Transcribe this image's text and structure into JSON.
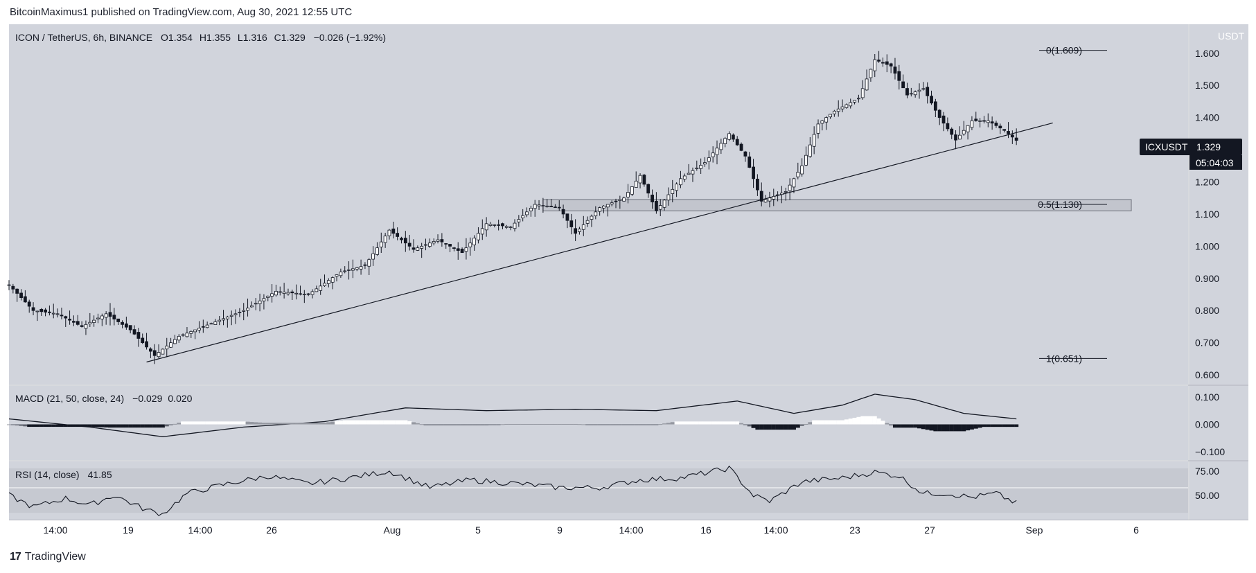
{
  "header": {
    "published": "BitcoinMaximus1 published on TradingView.com, Aug 30, 2021 12:55 UTC"
  },
  "footer": {
    "brand": "TradingView",
    "logo": "17"
  },
  "legend": {
    "symbol": "ICON / TetherUS, 6h, BINANCE",
    "o_label": "O",
    "o": "1.354",
    "h_label": "H",
    "h": "1.355",
    "l_label": "L",
    "l": "1.316",
    "c_label": "C",
    "c": "1.329",
    "change": "−0.026 (−1.92%)"
  },
  "price_badge": {
    "ticker": "ICXUSDT",
    "price": "1.329",
    "countdown": "05:04:03"
  },
  "macd": {
    "label": "MACD (21, 50, close, 24)",
    "v1": "−0.029",
    "v2": "0.020",
    "ticks": [
      "0.100",
      "0.000",
      "−0.100"
    ]
  },
  "rsi": {
    "label": "RSI (14, close)",
    "value": "41.85",
    "ticks": [
      "75.00",
      "50.00"
    ]
  },
  "chart_data": {
    "type": "candlestick",
    "title": "ICON / TetherUS, 6h, BINANCE",
    "currency": "USDT",
    "ylim": [
      0.57,
      1.69
    ],
    "y_ticks": [
      0.6,
      0.7,
      0.8,
      0.9,
      1.0,
      1.1,
      1.2,
      1.3,
      1.4,
      1.5,
      1.6
    ],
    "x_ticks": [
      "14:00",
      "19",
      "14:00",
      "26",
      "Aug",
      "5",
      "9",
      "14:00",
      "16",
      "14:00",
      "23",
      "27",
      "Sep",
      "6"
    ],
    "x_tick_labels_unit": "6h bars",
    "fib_levels": [
      {
        "label": "0(1.609)",
        "value": 1.609
      },
      {
        "label": "0.5(1.130)",
        "value": 1.13
      },
      {
        "label": "1(0.651)",
        "value": 0.651
      }
    ],
    "support_zone": [
      1.11,
      1.145
    ],
    "trendline": {
      "from": {
        "bar": 34,
        "price": 0.64
      },
      "to": {
        "bar": 248,
        "price": 1.35
      }
    },
    "ohlc_key_points": [
      [
        0,
        0.88
      ],
      [
        6,
        0.8
      ],
      [
        12,
        0.79
      ],
      [
        18,
        0.75
      ],
      [
        24,
        0.79
      ],
      [
        30,
        0.74
      ],
      [
        36,
        0.66
      ],
      [
        42,
        0.72
      ],
      [
        50,
        0.76
      ],
      [
        58,
        0.8
      ],
      [
        66,
        0.86
      ],
      [
        74,
        0.85
      ],
      [
        82,
        0.92
      ],
      [
        88,
        0.94
      ],
      [
        94,
        1.05
      ],
      [
        100,
        0.99
      ],
      [
        106,
        1.02
      ],
      [
        112,
        0.98
      ],
      [
        118,
        1.07
      ],
      [
        124,
        1.06
      ],
      [
        130,
        1.13
      ],
      [
        136,
        1.12
      ],
      [
        140,
        1.04
      ],
      [
        146,
        1.12
      ],
      [
        152,
        1.15
      ],
      [
        156,
        1.22
      ],
      [
        160,
        1.11
      ],
      [
        166,
        1.21
      ],
      [
        172,
        1.26
      ],
      [
        178,
        1.35
      ],
      [
        182,
        1.28
      ],
      [
        186,
        1.14
      ],
      [
        192,
        1.17
      ],
      [
        196,
        1.25
      ],
      [
        200,
        1.38
      ],
      [
        204,
        1.42
      ],
      [
        210,
        1.46
      ],
      [
        214,
        1.58
      ],
      [
        218,
        1.56
      ],
      [
        222,
        1.47
      ],
      [
        226,
        1.49
      ],
      [
        230,
        1.4
      ],
      [
        234,
        1.33
      ],
      [
        238,
        1.39
      ],
      [
        242,
        1.39
      ],
      [
        246,
        1.36
      ],
      [
        249,
        1.329
      ]
    ],
    "macd_line_key_points": [
      [
        0,
        0.02
      ],
      [
        20,
        -0.01
      ],
      [
        38,
        -0.045
      ],
      [
        58,
        -0.01
      ],
      [
        78,
        0.01
      ],
      [
        98,
        0.06
      ],
      [
        118,
        0.05
      ],
      [
        140,
        0.055
      ],
      [
        160,
        0.05
      ],
      [
        180,
        0.085
      ],
      [
        194,
        0.04
      ],
      [
        206,
        0.07
      ],
      [
        214,
        0.11
      ],
      [
        224,
        0.09
      ],
      [
        236,
        0.04
      ],
      [
        249,
        0.02
      ]
    ],
    "rsi_key_points": [
      [
        0,
        50
      ],
      [
        6,
        38
      ],
      [
        14,
        47
      ],
      [
        20,
        40
      ],
      [
        26,
        50
      ],
      [
        34,
        35
      ],
      [
        38,
        31
      ],
      [
        44,
        52
      ],
      [
        54,
        62
      ],
      [
        64,
        70
      ],
      [
        74,
        62
      ],
      [
        84,
        68
      ],
      [
        94,
        75
      ],
      [
        104,
        58
      ],
      [
        114,
        66
      ],
      [
        126,
        62
      ],
      [
        136,
        58
      ],
      [
        146,
        58
      ],
      [
        156,
        66
      ],
      [
        166,
        68
      ],
      [
        178,
        78
      ],
      [
        184,
        50
      ],
      [
        188,
        44
      ],
      [
        196,
        64
      ],
      [
        206,
        68
      ],
      [
        214,
        74
      ],
      [
        220,
        70
      ],
      [
        226,
        52
      ],
      [
        232,
        52
      ],
      [
        238,
        48
      ],
      [
        244,
        52
      ],
      [
        249,
        41.85
      ]
    ]
  }
}
